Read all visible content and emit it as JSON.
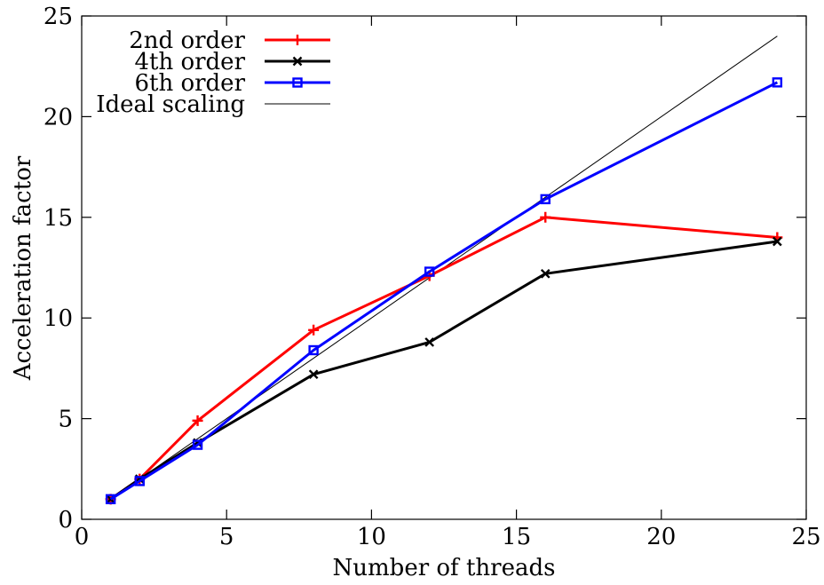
{
  "chart_data": {
    "type": "line",
    "title": "",
    "xlabel": "Number of threads",
    "ylabel": "Acceleration factor",
    "xlim": [
      0,
      25
    ],
    "ylim": [
      0,
      25
    ],
    "xticks": [
      0,
      5,
      10,
      15,
      20,
      25
    ],
    "yticks": [
      0,
      5,
      10,
      15,
      20,
      25
    ],
    "grid": false,
    "legend_position": "top-left",
    "series": [
      {
        "name": "2nd order",
        "color": "#ff0000",
        "marker": "plus",
        "x": [
          1,
          2,
          4,
          8,
          12,
          16,
          24
        ],
        "y": [
          1.0,
          2.0,
          4.9,
          9.4,
          12.1,
          15.0,
          14.0
        ]
      },
      {
        "name": "4th order",
        "color": "#000000",
        "marker": "cross",
        "x": [
          1,
          2,
          4,
          8,
          12,
          16,
          24
        ],
        "y": [
          1.0,
          2.0,
          3.8,
          7.2,
          8.8,
          12.2,
          13.8
        ]
      },
      {
        "name": "6th order",
        "color": "#0000ff",
        "marker": "square",
        "x": [
          1,
          2,
          4,
          8,
          12,
          16,
          24
        ],
        "y": [
          1.0,
          1.9,
          3.7,
          8.4,
          12.3,
          15.9,
          21.7
        ]
      },
      {
        "name": "Ideal scaling",
        "color": "#000000",
        "marker": "none",
        "thin": true,
        "x": [
          1,
          24
        ],
        "y": [
          1,
          24
        ]
      }
    ]
  }
}
